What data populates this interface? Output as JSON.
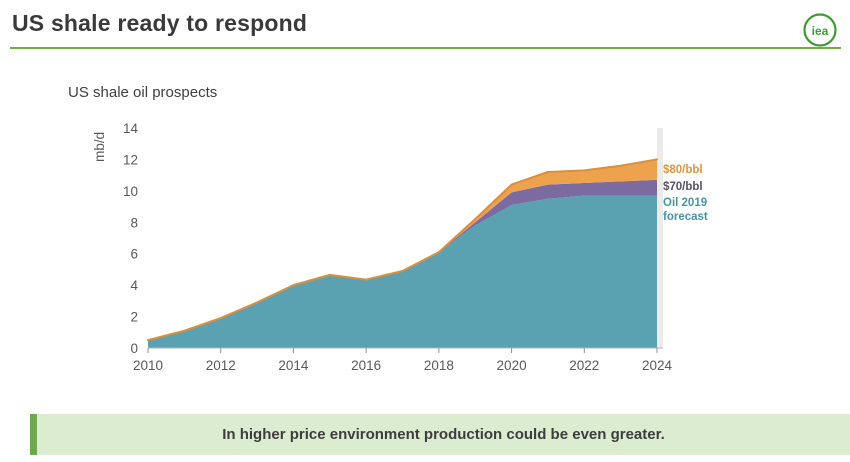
{
  "header": {
    "title": "US shale ready to respond"
  },
  "logo": {
    "text": "iea",
    "color": "#3f9c35"
  },
  "chart": {
    "title": "US shale oil prospects"
  },
  "legend": {
    "s80": {
      "label": "$80/bbl",
      "color": "#e0953f"
    },
    "s70": {
      "label": "$70/bbl",
      "color": "#57506e"
    },
    "forecast": {
      "label": "Oil 2019 forecast",
      "color": "#4796a8"
    }
  },
  "banner": {
    "text": "In higher price environment production could be even greater.",
    "bg_color": "#dcecd0",
    "accent_color": "#6fa84f"
  },
  "chart_data": {
    "type": "area",
    "stacked": true,
    "title": "US shale oil prospects",
    "xlabel": "",
    "ylabel": "mb/d",
    "x": [
      2010,
      2011,
      2012,
      2013,
      2014,
      2015,
      2016,
      2017,
      2018,
      2019,
      2020,
      2021,
      2022,
      2023,
      2024
    ],
    "series": [
      {
        "name": "Oil 2019 forecast",
        "color": "#5aa2b1",
        "values": [
          0.5,
          1.1,
          1.9,
          2.9,
          4.0,
          4.65,
          4.35,
          4.9,
          6.1,
          7.8,
          9.1,
          9.5,
          9.7,
          9.7,
          9.7
        ]
      },
      {
        "name": "$70/bbl",
        "color": "#7b6ba1",
        "values": [
          0,
          0,
          0,
          0,
          0,
          0,
          0,
          0,
          0,
          0.2,
          0.8,
          0.9,
          0.8,
          0.9,
          1.0
        ]
      },
      {
        "name": "$80/bbl",
        "color": "#efa24d",
        "values": [
          0,
          0,
          0,
          0,
          0,
          0,
          0,
          0,
          0,
          0.2,
          0.5,
          0.8,
          0.8,
          1.0,
          1.3
        ]
      }
    ],
    "edge_color": "#db8f3d",
    "shadow_color": "#ebebeb",
    "ylim": [
      0,
      14
    ],
    "yticks": [
      0,
      2,
      4,
      6,
      8,
      10,
      12,
      14
    ],
    "xticks": [
      2010,
      2012,
      2014,
      2016,
      2018,
      2020,
      2022,
      2024
    ],
    "grid": false,
    "legend_position": "right"
  }
}
